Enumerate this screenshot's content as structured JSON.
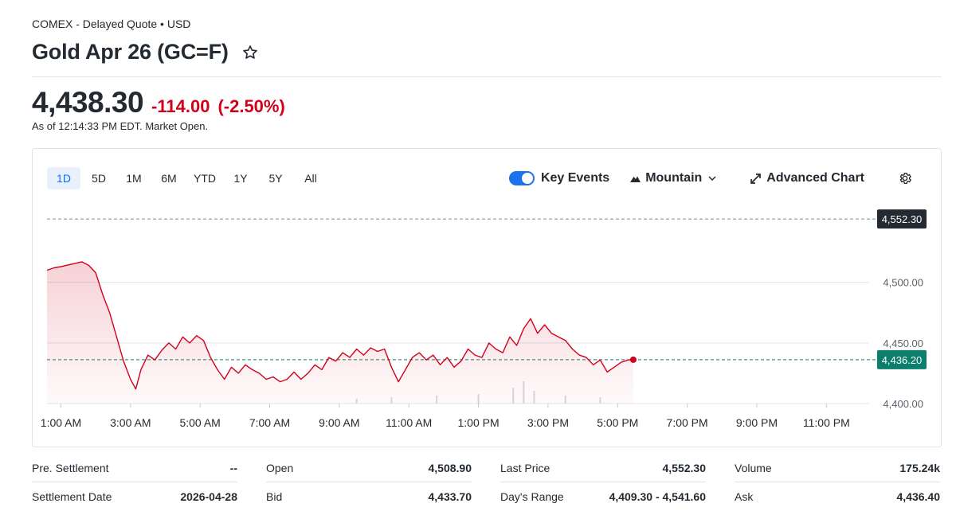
{
  "header": {
    "exchange": "COMEX - Delayed Quote • USD",
    "title": "Gold Apr 26 (GC=F)",
    "star_icon": "star-outline-icon"
  },
  "quote": {
    "price": "4,438.30",
    "change": "-114.00",
    "change_pct": "(-2.50%)",
    "as_of": "As of 12:14:33 PM EDT. Market Open.",
    "down_color": "#d0021b"
  },
  "chart": {
    "ranges": [
      "1D",
      "5D",
      "1M",
      "6M",
      "YTD",
      "1Y",
      "5Y",
      "All"
    ],
    "active_range": "1D",
    "key_events_label": "Key Events",
    "key_events_on": true,
    "chart_type_label": "Mountain",
    "advanced_label": "Advanced Chart",
    "gear_icon": "gear-icon",
    "prev_close_label": "4,552.30",
    "last_label": "4,436.20"
  },
  "chart_data": {
    "type": "area",
    "x_ticks": [
      "1:00 AM",
      "3:00 AM",
      "5:00 AM",
      "7:00 AM",
      "9:00 AM",
      "11:00 AM",
      "1:00 PM",
      "3:00 PM",
      "5:00 PM",
      "7:00 PM",
      "9:00 PM",
      "11:00 PM"
    ],
    "y_ticks": [
      "4,400.00",
      "4,450.00",
      "4,500.00"
    ],
    "ylim": [
      4400,
      4555
    ],
    "xlim_hours": [
      0.6,
      24.0
    ],
    "previous_close": 4552.3,
    "last": 4436.2,
    "series": [
      {
        "points": [
          [
            0.6,
            4510
          ],
          [
            0.8,
            4512
          ],
          [
            1.0,
            4513
          ],
          [
            1.3,
            4515
          ],
          [
            1.6,
            4517
          ],
          [
            1.8,
            4514
          ],
          [
            2.0,
            4508
          ],
          [
            2.2,
            4490
          ],
          [
            2.4,
            4475
          ],
          [
            2.6,
            4455
          ],
          [
            2.8,
            4435
          ],
          [
            3.0,
            4420
          ],
          [
            3.15,
            4412
          ],
          [
            3.3,
            4428
          ],
          [
            3.5,
            4440
          ],
          [
            3.7,
            4436
          ],
          [
            3.9,
            4444
          ],
          [
            4.1,
            4450
          ],
          [
            4.3,
            4445
          ],
          [
            4.5,
            4455
          ],
          [
            4.7,
            4450
          ],
          [
            4.9,
            4456
          ],
          [
            5.1,
            4452
          ],
          [
            5.3,
            4438
          ],
          [
            5.5,
            4428
          ],
          [
            5.7,
            4420
          ],
          [
            5.9,
            4430
          ],
          [
            6.1,
            4425
          ],
          [
            6.3,
            4432
          ],
          [
            6.5,
            4428
          ],
          [
            6.7,
            4425
          ],
          [
            6.9,
            4420
          ],
          [
            7.1,
            4422
          ],
          [
            7.3,
            4418
          ],
          [
            7.5,
            4420
          ],
          [
            7.7,
            4426
          ],
          [
            7.9,
            4420
          ],
          [
            8.1,
            4425
          ],
          [
            8.3,
            4432
          ],
          [
            8.5,
            4428
          ],
          [
            8.7,
            4438
          ],
          [
            8.9,
            4435
          ],
          [
            9.1,
            4442
          ],
          [
            9.3,
            4438
          ],
          [
            9.5,
            4445
          ],
          [
            9.7,
            4440
          ],
          [
            9.9,
            4446
          ],
          [
            10.1,
            4443
          ],
          [
            10.3,
            4445
          ],
          [
            10.5,
            4430
          ],
          [
            10.7,
            4418
          ],
          [
            10.9,
            4428
          ],
          [
            11.1,
            4438
          ],
          [
            11.3,
            4442
          ],
          [
            11.5,
            4436
          ],
          [
            11.7,
            4440
          ],
          [
            11.9,
            4432
          ],
          [
            12.1,
            4438
          ],
          [
            12.3,
            4430
          ],
          [
            12.5,
            4435
          ],
          [
            12.7,
            4445
          ],
          [
            12.9,
            4440
          ],
          [
            13.1,
            4438
          ],
          [
            13.3,
            4450
          ],
          [
            13.5,
            4445
          ],
          [
            13.7,
            4442
          ],
          [
            13.9,
            4455
          ],
          [
            14.1,
            4448
          ],
          [
            14.3,
            4462
          ],
          [
            14.5,
            4470
          ],
          [
            14.7,
            4458
          ],
          [
            14.9,
            4465
          ],
          [
            15.1,
            4458
          ],
          [
            15.3,
            4455
          ],
          [
            15.5,
            4452
          ],
          [
            15.7,
            4445
          ],
          [
            15.9,
            4440
          ],
          [
            16.1,
            4438
          ],
          [
            16.3,
            4432
          ],
          [
            16.5,
            4436
          ],
          [
            16.7,
            4426
          ],
          [
            16.9,
            4430
          ],
          [
            17.1,
            4434
          ],
          [
            17.3,
            4436
          ],
          [
            17.45,
            4436.2
          ]
        ]
      }
    ],
    "volume": [
      [
        9.5,
        3
      ],
      [
        10.5,
        4
      ],
      [
        11.8,
        5
      ],
      [
        13.0,
        6
      ],
      [
        14.0,
        10
      ],
      [
        14.3,
        14
      ],
      [
        14.6,
        8
      ],
      [
        15.5,
        5
      ],
      [
        16.5,
        4
      ]
    ]
  },
  "stats": [
    [
      {
        "label": "Pre. Settlement",
        "value": "--"
      },
      {
        "label": "Open",
        "value": "4,508.90"
      },
      {
        "label": "Last Price",
        "value": "4,552.30"
      },
      {
        "label": "Volume",
        "value": "175.24k"
      }
    ],
    [
      {
        "label": "Settlement Date",
        "value": "2026-04-28"
      },
      {
        "label": "Bid",
        "value": "4,433.70"
      },
      {
        "label": "Day's Range",
        "value": "4,409.30 - 4,541.60"
      },
      {
        "label": "Ask",
        "value": "4,436.40"
      }
    ]
  ]
}
